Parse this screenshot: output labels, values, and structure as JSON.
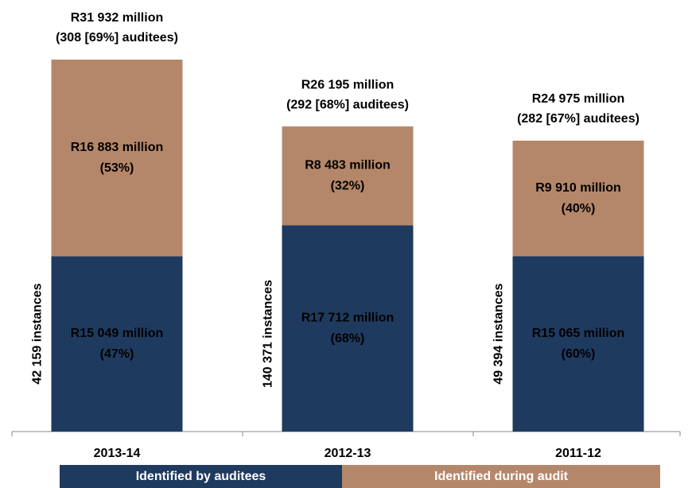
{
  "chart_data": {
    "type": "stacked_bar",
    "categories": [
      "2013-14",
      "2012-13",
      "2011-12"
    ],
    "series": [
      {
        "name": "Identified by auditees",
        "color": "#1f3a5f",
        "values": [
          15049,
          17712,
          15065
        ],
        "value_labels": [
          [
            "R15 049 million",
            "(47%)"
          ],
          [
            "R17 712 million",
            "(68%)"
          ],
          [
            "R15  065 million",
            "(60%)"
          ]
        ]
      },
      {
        "name": "Identified during audit",
        "color": "#b5876a",
        "values": [
          16883,
          8483,
          9910
        ],
        "value_labels": [
          [
            "R16 883 million",
            "(53%)"
          ],
          [
            "R8 483 million",
            "(32%)"
          ],
          [
            "R9 910 million",
            "(40%)"
          ]
        ]
      }
    ],
    "totals": [
      [
        "R31 932 million",
        "(308 [69%] auditees)"
      ],
      [
        "R26 195 million",
        "(292 [68%] auditees)"
      ],
      [
        "R24 975 million",
        "(282 [67%] auditees)"
      ]
    ],
    "instances": [
      "42 159 instances",
      "140 371 instances",
      "49 394 instances"
    ],
    "legend": "bottom"
  }
}
